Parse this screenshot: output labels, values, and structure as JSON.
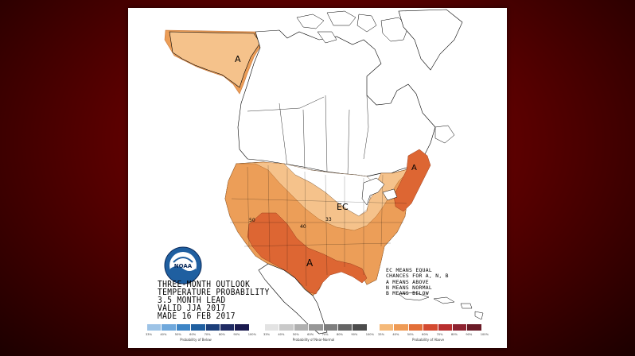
{
  "header": {
    "line1": "THREE-MONTH OUTLOOK",
    "line2": "TEMPERATURE PROBABILITY",
    "line3": "3.5 MONTH LEAD",
    "line4": "VALID JJA 2017",
    "line5": "MADE 16 FEB 2017"
  },
  "logo": {
    "text": "NOAA"
  },
  "legend_key": {
    "line1": "EC MEANS EQUAL",
    "line2": "CHANCES FOR A, N, B",
    "line3": "A MEANS ABOVE",
    "line4": "N MEANS NORMAL",
    "line5": "B MEANS BELOW"
  },
  "map_labels": {
    "alaska": "A",
    "northeast": "A",
    "southwest": "A",
    "ec": "EC",
    "contour_50": "50",
    "contour_40": "40",
    "contour_33": "33"
  },
  "scales": {
    "below": {
      "title": "Probability of Below",
      "ticks": [
        "33%",
        "40%",
        "50%",
        "60%",
        "70%",
        "80%",
        "90%",
        "100%"
      ],
      "colors": [
        "#9dc3e6",
        "#6fa8dc",
        "#3d85c6",
        "#1f5fa0",
        "#1c3f7a",
        "#1f2b63",
        "#1a1a4f"
      ]
    },
    "normal": {
      "title": "Probability of Near-Normal",
      "ticks": [
        "33%",
        "40%",
        "50%",
        "60%",
        "70%",
        "80%",
        "90%",
        "100%"
      ],
      "colors": [
        "#e3e3e3",
        "#c9c9c9",
        "#b0b0b0",
        "#979797",
        "#7e7e7e",
        "#656565",
        "#4c4c4c"
      ]
    },
    "above": {
      "title": "Probability of Above",
      "ticks": [
        "33%",
        "40%",
        "50%",
        "60%",
        "70%",
        "80%",
        "90%",
        "100%"
      ],
      "colors": [
        "#f5b979",
        "#ef9b55",
        "#e36f38",
        "#d44a30",
        "#b82e2e",
        "#8e2230",
        "#6a1a26"
      ]
    }
  },
  "colors": {
    "above_33": "#f5c28b",
    "above_40": "#ec9e58",
    "above_50": "#dd6633",
    "background_dark": "#5a0000"
  }
}
